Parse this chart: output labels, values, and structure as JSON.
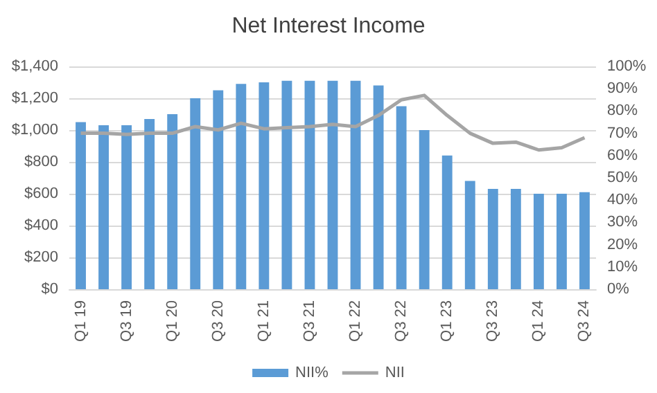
{
  "chart_data": {
    "type": "bar",
    "title": "Net Interest Income",
    "categories": [
      "Q1 19",
      null,
      "Q3 19",
      null,
      "Q1 20",
      null,
      "Q3 20",
      null,
      "Q1 21",
      null,
      "Q3 21",
      null,
      "Q1 22",
      null,
      "Q3 22",
      null,
      "Q1 23",
      null,
      "Q3 23",
      null,
      "Q1 24",
      null,
      "Q3 24"
    ],
    "series": [
      {
        "name": "NII%",
        "color": "#5b9bd5",
        "values": [
          1050,
          1030,
          1030,
          1070,
          1100,
          1200,
          1250,
          1290,
          1300,
          1310,
          1310,
          1310,
          1310,
          1280,
          1150,
          1000,
          840,
          680,
          630,
          630,
          600,
          600,
          610
        ]
      },
      {
        "name": "NII",
        "type": "line",
        "axis": "y2",
        "color": "#a5a5a5",
        "values": [
          70,
          70,
          69.5,
          70,
          70,
          73,
          71.5,
          74.5,
          72,
          72.5,
          73,
          74,
          73,
          78,
          85,
          87,
          78,
          70,
          65.5,
          66,
          62.5,
          63.5,
          68
        ]
      }
    ],
    "ylim": [
      0,
      1400
    ],
    "yticks": [
      {
        "value": 0,
        "label": "$0"
      },
      {
        "value": 200,
        "label": "$200"
      },
      {
        "value": 400,
        "label": "$400"
      },
      {
        "value": 600,
        "label": "$600"
      },
      {
        "value": 800,
        "label": "$800"
      },
      {
        "value": 1000,
        "label": "$1,000"
      },
      {
        "value": 1200,
        "label": "$1,200"
      },
      {
        "value": 1400,
        "label": "$1,400"
      }
    ],
    "y2lim": [
      0,
      100
    ],
    "y2ticks": [
      {
        "value": 0,
        "label": "0%"
      },
      {
        "value": 10,
        "label": "10%"
      },
      {
        "value": 20,
        "label": "20%"
      },
      {
        "value": 30,
        "label": "30%"
      },
      {
        "value": 40,
        "label": "40%"
      },
      {
        "value": 50,
        "label": "50%"
      },
      {
        "value": 60,
        "label": "60%"
      },
      {
        "value": 70,
        "label": "70%"
      },
      {
        "value": 80,
        "label": "80%"
      },
      {
        "value": 90,
        "label": "90%"
      },
      {
        "value": 100,
        "label": "100%"
      }
    ],
    "grid": "y",
    "legend": "bottom",
    "marker": "none"
  }
}
